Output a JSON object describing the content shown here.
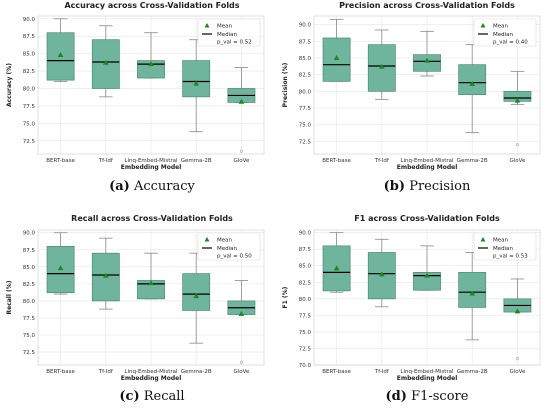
{
  "chart_data": [
    {
      "type": "box",
      "title": "Accuracy across Cross-Validation Folds",
      "xlabel": "Embedding Model",
      "ylabel": "Accuracy (%)",
      "ylim": [
        70.6,
        90.4
      ],
      "yticks": [
        72.5,
        75.0,
        77.5,
        80.0,
        82.5,
        85.0,
        87.5,
        90.0
      ],
      "categories": [
        "BERT-base",
        "Tf-Idf",
        "Linq-Embed-Mistral",
        "Gemma-2B",
        "GloVe"
      ],
      "boxes": [
        {
          "whislo": 81.0,
          "q1": 81.2,
          "med": 84.0,
          "q3": 88.0,
          "whishi": 90.0,
          "mean": 84.8,
          "fliers": []
        },
        {
          "whislo": 78.8,
          "q1": 80.0,
          "med": 83.8,
          "q3": 87.0,
          "whishi": 89.0,
          "mean": 83.7,
          "fliers": []
        },
        {
          "whislo": 81.5,
          "q1": 81.5,
          "med": 83.5,
          "q3": 84.0,
          "whishi": 88.0,
          "mean": 83.5,
          "fliers": []
        },
        {
          "whislo": 73.8,
          "q1": 78.8,
          "med": 81.0,
          "q3": 84.0,
          "whishi": 87.0,
          "mean": 80.7,
          "fliers": []
        },
        {
          "whislo": 78.0,
          "q1": 78.0,
          "med": 79.0,
          "q3": 80.0,
          "whishi": 83.0,
          "mean": 78.1,
          "fliers": [
            71.0
          ]
        }
      ],
      "legend": {
        "mean": "Mean",
        "median": "Median",
        "pval": "p_val = 0.52"
      },
      "legend_position": "top-right",
      "caption_letter": "(a)",
      "caption_text": "Accuracy"
    },
    {
      "type": "box",
      "title": "Precision across Cross-Validation Folds",
      "xlabel": "Embedding Model",
      "ylabel": "Precision (%)",
      "ylim": [
        70.6,
        91.3
      ],
      "yticks": [
        72.5,
        75.0,
        77.5,
        80.0,
        82.5,
        85.0,
        87.5,
        90.0
      ],
      "categories": [
        "BERT-base",
        "Tf-Idf",
        "Linq-Embed-Mistral",
        "Gemma-2B",
        "GloVe"
      ],
      "boxes": [
        {
          "whislo": 81.5,
          "q1": 81.5,
          "med": 84.0,
          "q3": 88.0,
          "whishi": 90.8,
          "mean": 85.0,
          "fliers": []
        },
        {
          "whislo": 78.8,
          "q1": 80.0,
          "med": 83.8,
          "q3": 87.0,
          "whishi": 89.2,
          "mean": 83.7,
          "fliers": []
        },
        {
          "whislo": 82.3,
          "q1": 83.0,
          "med": 84.5,
          "q3": 85.5,
          "whishi": 89.0,
          "mean": 84.6,
          "fliers": []
        },
        {
          "whislo": 73.8,
          "q1": 79.5,
          "med": 81.3,
          "q3": 84.0,
          "whishi": 87.0,
          "mean": 81.1,
          "fliers": []
        },
        {
          "whislo": 78.0,
          "q1": 78.5,
          "med": 79.0,
          "q3": 80.0,
          "whishi": 83.0,
          "mean": 78.6,
          "fliers": [
            72.0
          ]
        }
      ],
      "legend": {
        "mean": "Mean",
        "median": "Median",
        "pval": "p_val = 0.40"
      },
      "legend_position": "top-right",
      "caption_letter": "(b)",
      "caption_text": "Precision"
    },
    {
      "type": "box",
      "title": "Recall across Cross-Validation Folds",
      "xlabel": "Embedding Model",
      "ylabel": "Recall (%)",
      "ylim": [
        70.6,
        90.4
      ],
      "yticks": [
        72.5,
        75.0,
        77.5,
        80.0,
        82.5,
        85.0,
        87.5,
        90.0
      ],
      "categories": [
        "BERT-base",
        "Tf-Idf",
        "Linq-Embed-Mistral",
        "Gemma-2B",
        "GloVe"
      ],
      "boxes": [
        {
          "whislo": 81.0,
          "q1": 81.2,
          "med": 84.0,
          "q3": 88.0,
          "whishi": 90.0,
          "mean": 84.8,
          "fliers": []
        },
        {
          "whislo": 78.8,
          "q1": 80.0,
          "med": 83.8,
          "q3": 87.0,
          "whishi": 89.2,
          "mean": 83.7,
          "fliers": []
        },
        {
          "whislo": 80.3,
          "q1": 80.3,
          "med": 82.5,
          "q3": 83.0,
          "whishi": 87.0,
          "mean": 82.6,
          "fliers": []
        },
        {
          "whislo": 73.8,
          "q1": 78.6,
          "med": 81.0,
          "q3": 84.0,
          "whishi": 87.0,
          "mean": 80.7,
          "fliers": []
        },
        {
          "whislo": 78.0,
          "q1": 78.0,
          "med": 79.0,
          "q3": 80.0,
          "whishi": 83.0,
          "mean": 78.1,
          "fliers": [
            71.0
          ]
        }
      ],
      "legend": {
        "mean": "Mean",
        "median": "Median",
        "pval": "p_val = 0.50"
      },
      "legend_position": "top-right",
      "caption_letter": "(c)",
      "caption_text": "Recall"
    },
    {
      "type": "box",
      "title": "F1 across Cross-Validation Folds",
      "xlabel": "Embedding Model",
      "ylabel": "F1 (%)",
      "ylim": [
        70.0,
        90.4
      ],
      "yticks": [
        70.0,
        72.5,
        75.0,
        77.5,
        80.0,
        82.5,
        85.0,
        87.5,
        90.0
      ],
      "categories": [
        "BERT-base",
        "Tf-Idf",
        "Linq-Embed-Mistral",
        "Gemma-2B",
        "GloVe"
      ],
      "boxes": [
        {
          "whislo": 81.0,
          "q1": 81.2,
          "med": 84.0,
          "q3": 88.0,
          "whishi": 90.0,
          "mean": 84.6,
          "fliers": []
        },
        {
          "whislo": 78.8,
          "q1": 80.0,
          "med": 83.8,
          "q3": 87.0,
          "whishi": 89.0,
          "mean": 83.7,
          "fliers": []
        },
        {
          "whislo": 81.3,
          "q1": 81.3,
          "med": 83.5,
          "q3": 84.0,
          "whishi": 88.0,
          "mean": 83.5,
          "fliers": []
        },
        {
          "whislo": 73.8,
          "q1": 78.7,
          "med": 81.0,
          "q3": 84.0,
          "whishi": 87.0,
          "mean": 80.8,
          "fliers": []
        },
        {
          "whislo": 78.0,
          "q1": 78.0,
          "med": 79.0,
          "q3": 80.0,
          "whishi": 83.0,
          "mean": 78.1,
          "fliers": [
            71.0
          ]
        }
      ],
      "legend": {
        "mean": "Mean",
        "median": "Median",
        "pval": "p_val = 0.53"
      },
      "legend_position": "top-right",
      "caption_letter": "(d)",
      "caption_text": "F1-score"
    }
  ],
  "colors": {
    "box_fill": "#6fb59d",
    "box_edge": "#4a8a73",
    "whisker": "#888888",
    "median": "#000000",
    "mean": "#1a8a1a",
    "grid": "#e6e6e6",
    "flier": "#aaaaaa"
  }
}
